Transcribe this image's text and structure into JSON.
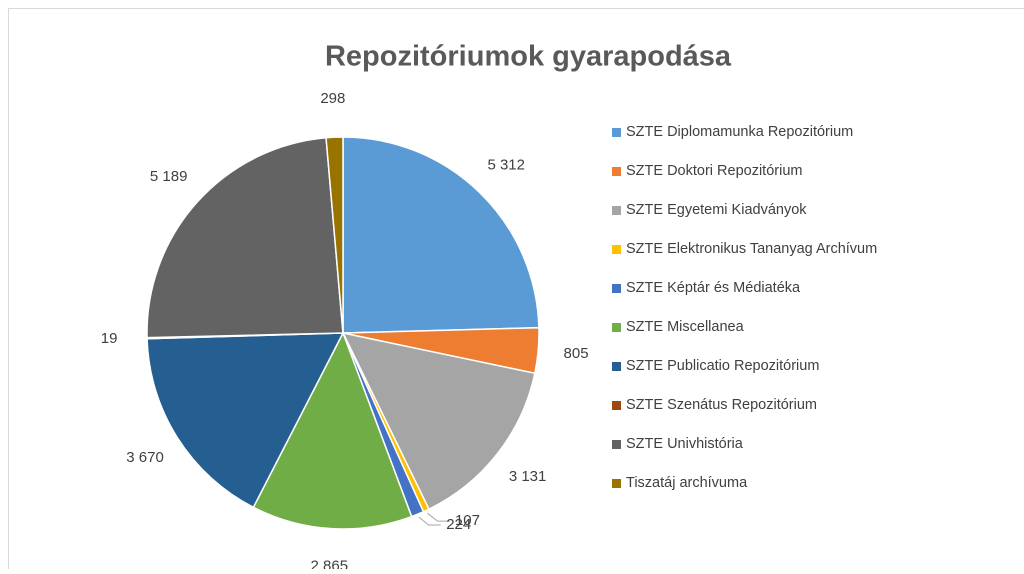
{
  "chart_data": {
    "type": "pie",
    "title": "Repozitóriumok gyarapodása",
    "categories": [
      "SZTE Diplomamunka Repozitórium",
      "SZTE Doktori Repozitórium",
      "SZTE Egyetemi Kiadványok",
      "SZTE Elektronikus Tananyag Archívum",
      "SZTE Képtár és Médiatéka",
      "SZTE Miscellanea",
      "SZTE Publicatio Repozitórium",
      "SZTE Szenátus Repozitórium",
      "SZTE Univhistória",
      "Tiszatáj archívuma"
    ],
    "values": [
      5312,
      805,
      3131,
      107,
      224,
      2865,
      3670,
      19,
      5189,
      298
    ],
    "value_labels": [
      "5 312",
      "805",
      "3 131",
      "107",
      "224",
      "2 865",
      "3 670",
      "19",
      "5 189",
      "298"
    ],
    "colors": [
      "#5b9bd5",
      "#ed7d31",
      "#a5a5a5",
      "#ffc000",
      "#4472c4",
      "#70ad47",
      "#255e91",
      "#9e480e",
      "#636363",
      "#997300"
    ],
    "legend": "right"
  }
}
